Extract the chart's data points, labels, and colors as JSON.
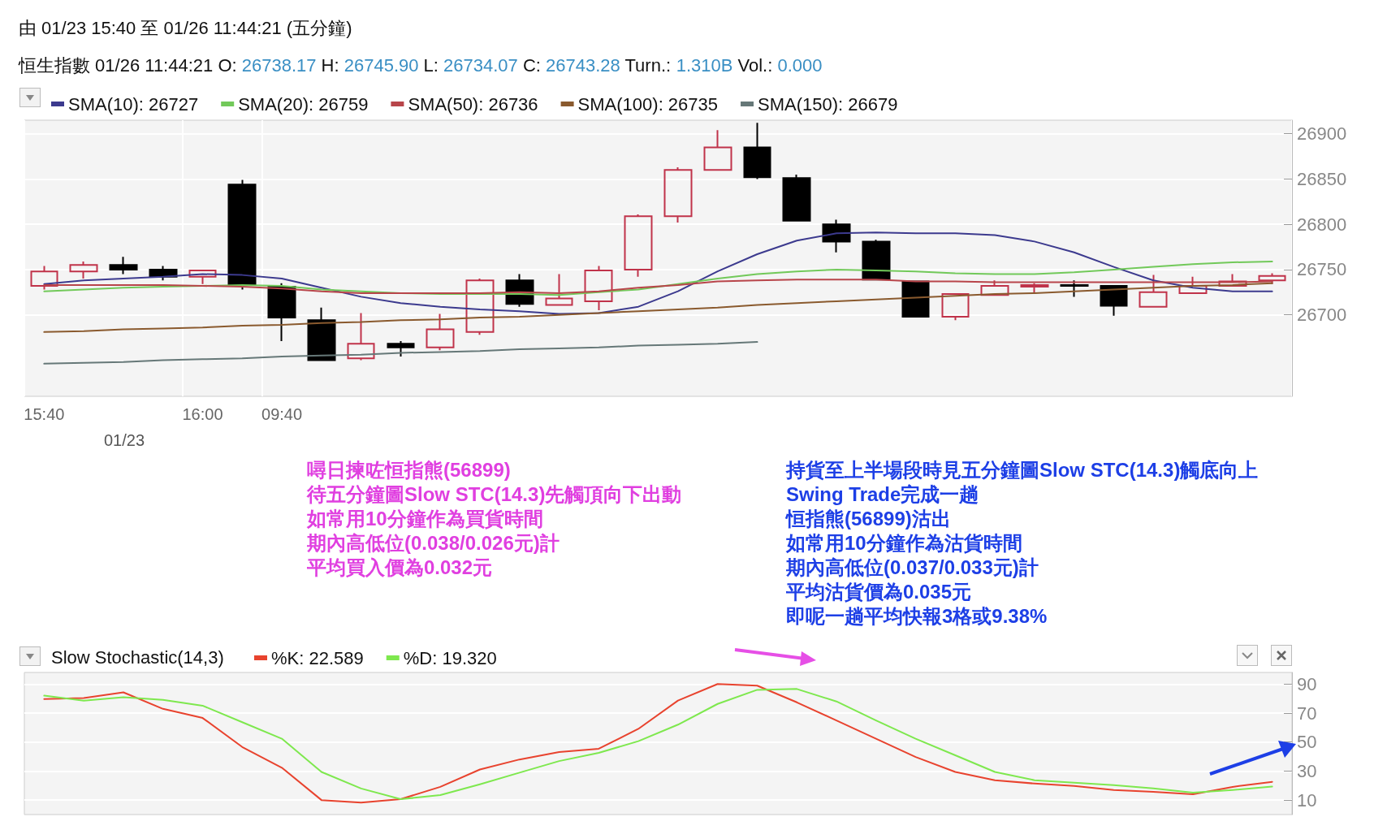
{
  "chart_data": [
    {
      "type": "candlestick",
      "title": "由 01/23 15:40 至 01/26 11:44:21 (五分鐘)",
      "subtitle": "恒生指數 01/26 11:44:21 O: 26738.17 H: 26745.90 L: 26734.07 C: 26743.28 Turn.: 1.310B Vol.: 0.000",
      "categories": [
        "15:40",
        null,
        null,
        null,
        "16:00",
        null,
        "09:40",
        null,
        null,
        null,
        null,
        null,
        null,
        null,
        null,
        null,
        null,
        null,
        null,
        null,
        null,
        null,
        null,
        null,
        null,
        null,
        null,
        null,
        null,
        null,
        null,
        null
      ],
      "ohlc": [
        [
          26732,
          26754,
          26728,
          26748
        ],
        [
          26748,
          26759,
          26740,
          26755
        ],
        [
          26755,
          26764,
          26745,
          26750
        ],
        [
          26750,
          26754,
          26738,
          26742
        ],
        [
          26742,
          26749,
          26734,
          26749
        ],
        [
          26844,
          26849,
          26728,
          26733
        ],
        [
          26731,
          26735,
          26671,
          26697
        ],
        [
          26694,
          26708,
          26649,
          26650
        ],
        [
          26652,
          26702,
          26650,
          26668
        ],
        [
          26668,
          26671,
          26654,
          26664
        ],
        [
          26664,
          26701,
          26661,
          26684
        ],
        [
          26681,
          26740,
          26678,
          26738
        ],
        [
          26738,
          26745,
          26709,
          26712
        ],
        [
          26711,
          26745,
          26710,
          26718
        ],
        [
          26715,
          26754,
          26705,
          26749
        ],
        [
          26750,
          26811,
          26742,
          26809
        ],
        [
          26809,
          26863,
          26802,
          26860
        ],
        [
          26860,
          26904,
          26860,
          26885
        ],
        [
          26885,
          26912,
          26850,
          26852
        ],
        [
          26851,
          26855,
          26804,
          26804
        ],
        [
          26800,
          26805,
          26769,
          26781
        ],
        [
          26781,
          26783,
          26739,
          26739
        ],
        [
          26737,
          26737,
          26698,
          26698
        ],
        [
          26698,
          26724,
          26694,
          26723
        ],
        [
          26722,
          26738,
          26722,
          26732
        ],
        [
          26731,
          26735,
          26723,
          26733
        ],
        [
          26733,
          26738,
          26720,
          26732
        ],
        [
          26732,
          26732,
          26699,
          26710
        ],
        [
          26709,
          26744,
          26708,
          26725
        ],
        [
          26724,
          26742,
          26724,
          26732
        ],
        [
          26732,
          26745,
          26732,
          26737
        ],
        [
          26738,
          26746,
          26734,
          26743
        ]
      ],
      "series": [
        {
          "type": "line",
          "name": "SMA(10): 26727",
          "color": "#3c3a8e",
          "values": [
            26734,
            26738,
            26740,
            26742,
            26745,
            26744,
            26740,
            26730,
            26720,
            26713,
            26709,
            26706,
            26704,
            26701,
            26702,
            26709,
            26726,
            26748,
            26767,
            26782,
            26790,
            26791,
            26790,
            26790,
            26788,
            26781,
            26769,
            26753,
            26738,
            26730,
            26726,
            26726
          ]
        },
        {
          "type": "line",
          "name": "SMA(20): 26759",
          "color": "#72c95a",
          "values": [
            26726,
            26728,
            26730,
            26731,
            26732,
            26733,
            26732,
            26728,
            26726,
            26724,
            26723,
            26723,
            26723,
            26722,
            26725,
            26728,
            26734,
            26740,
            26745,
            26748,
            26750,
            26749,
            26748,
            26746,
            26745,
            26745,
            26747,
            26750,
            26753,
            26756,
            26758,
            26759
          ]
        },
        {
          "type": "line",
          "name": "SMA(50): 26736",
          "color": "#b8454a",
          "values": [
            26733,
            26733,
            26733,
            26733,
            26732,
            26731,
            26729,
            26726,
            26724,
            26724,
            26724,
            26724,
            26725,
            26724,
            26726,
            26730,
            26733,
            26737,
            26738,
            26739,
            26739,
            26739,
            26737,
            26737,
            26736,
            26736,
            26736,
            26736,
            26736,
            26736,
            26736,
            26737
          ]
        },
        {
          "type": "line",
          "name": "SMA(100): 26735",
          "color": "#8a5a2e",
          "values": [
            26681,
            26682,
            26684,
            26685,
            26686,
            26688,
            26689,
            26691,
            26692,
            26694,
            26695,
            26697,
            26698,
            26700,
            26702,
            26704,
            26706,
            26708,
            26711,
            26713,
            26715,
            26717,
            26719,
            26721,
            26723,
            26724,
            26726,
            26728,
            26730,
            26732,
            26733,
            26735
          ]
        },
        {
          "type": "line",
          "name": "SMA(150): 26679",
          "color": "#667878",
          "values": [
            26646,
            26647,
            26648,
            26650,
            26651,
            26652,
            26654,
            26655,
            26656,
            26658,
            26659,
            26660,
            26662,
            26663,
            26664,
            26666,
            26667,
            26668,
            26670,
            null,
            null,
            null,
            null,
            null,
            null,
            null,
            null,
            null,
            null,
            null,
            null,
            null
          ]
        }
      ],
      "ylim": [
        26610,
        26915
      ],
      "yticks": [
        26700,
        26750,
        26800,
        26850,
        26900
      ],
      "grid": true,
      "legend": "top left",
      "annotations": [
        "01/23",
        "噚日揀咗恒指熊(56899)",
        "待五分鐘圖Slow STC(14.3)先觸頂向下出動",
        "如常用10分鐘作為買貨時間",
        "期內高低位(0.038/0.026元)計",
        "平均買入價為0.032元",
        "持貨至上半場段時見五分鐘圖Slow STC(14.3)觸底向上",
        "Swing Trade完成一趟",
        "恒指熊(56899)沽出",
        "如常用10分鐘作為沽貨時間",
        "期內高低位(0.037/0.033元)計",
        "平均沽貨價為0.035元",
        "即呢一趟平均快報3格或9.38%"
      ]
    },
    {
      "type": "line",
      "title": "Slow Stochastic(14,3)",
      "categories": [
        null,
        null,
        null,
        null,
        null,
        null,
        null,
        null,
        null,
        null,
        null,
        null,
        null,
        null,
        null,
        null,
        null,
        null,
        null,
        null,
        null,
        null,
        null,
        null,
        null,
        null,
        null,
        null,
        null,
        null,
        null,
        null
      ],
      "series": [
        {
          "name": "%K: 22.589",
          "color": "#e8432e",
          "values": [
            79.7,
            80.3,
            84.3,
            72.9,
            66.6,
            46.6,
            32.3,
            10,
            8.3,
            10.6,
            19.1,
            31.1,
            38,
            43.1,
            45.4,
            59.1,
            78.6,
            90,
            88.9,
            77.4,
            64.9,
            52.3,
            39.7,
            29.4,
            23.7,
            21.4,
            19.7,
            16.9,
            15.7,
            14,
            19.1,
            22.6
          ]
        },
        {
          "name": "%D: 19.320",
          "color": "#7ee84e",
          "values": [
            82,
            78.6,
            80.9,
            79.1,
            75.1,
            63.7,
            52.3,
            29.4,
            18,
            10.6,
            13.4,
            20.9,
            28.9,
            36.9,
            42.6,
            50.6,
            62,
            76.3,
            86,
            86.6,
            78,
            64.9,
            52.3,
            40.9,
            29.4,
            23.7,
            22,
            20.3,
            18,
            15.1,
            16.9,
            19.3
          ]
        }
      ],
      "ylim": [
        0,
        98
      ],
      "yticks": [
        10,
        30,
        50,
        70,
        90
      ],
      "grid": true,
      "legend": "top left",
      "tick_labels": "y"
    }
  ]
}
